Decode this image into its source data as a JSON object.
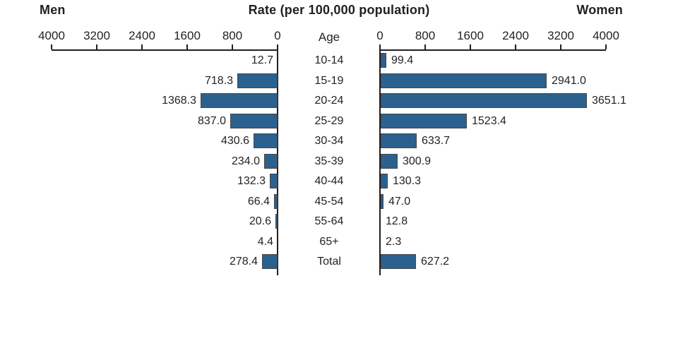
{
  "header": {
    "men_title": "Men",
    "center_title": "Rate (per 100,000 population)",
    "women_title": "Women"
  },
  "axis": {
    "age_header": "Age",
    "men_ticks": [
      "4000",
      "3200",
      "2400",
      "1600",
      "800",
      "0"
    ],
    "women_ticks": [
      "0",
      "800",
      "1600",
      "2400",
      "3200",
      "4000"
    ]
  },
  "colors": {
    "bar_fill": "#2b618f",
    "bar_border": "#474747",
    "axis": "#231f20",
    "text": "#231f20"
  },
  "chart_data": {
    "type": "bar",
    "orientation": "horizontal-back-to-back-pyramid",
    "title": "Rate (per 100,000 population)",
    "categories": [
      "10-14",
      "15-19",
      "20-24",
      "25-29",
      "30-34",
      "35-39",
      "40-44",
      "45-54",
      "55-64",
      "65+",
      "Total"
    ],
    "series": [
      {
        "name": "Men",
        "side": "left",
        "values": [
          12.7,
          718.3,
          1368.3,
          837.0,
          430.6,
          234.0,
          132.3,
          66.4,
          20.6,
          4.4,
          278.4
        ]
      },
      {
        "name": "Women",
        "side": "right",
        "values": [
          99.4,
          2941.0,
          3651.1,
          1523.4,
          633.7,
          300.9,
          130.3,
          47.0,
          12.8,
          2.3,
          627.2
        ]
      }
    ],
    "xlim": [
      0,
      4000
    ],
    "tick_step": 800,
    "grid": false,
    "legend_position": "titles-above-each-side",
    "data_labels": "value at outer end of each bar, one decimal"
  }
}
